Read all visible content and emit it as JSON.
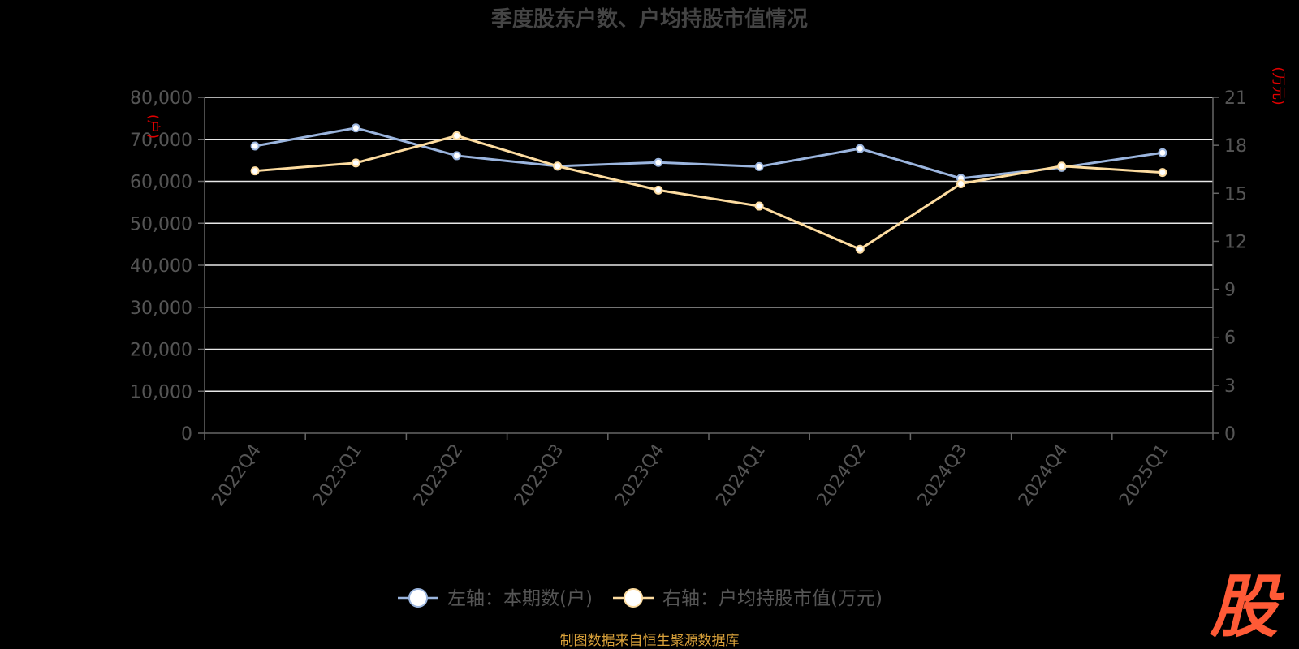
{
  "chart_data": {
    "type": "line",
    "title": "季度股东户数、户均持股市值情况",
    "categories": [
      "2022Q4",
      "2023Q1",
      "2023Q2",
      "2023Q3",
      "2023Q4",
      "2024Q1",
      "2024Q2",
      "2024Q3",
      "2024Q4",
      "2025Q1"
    ],
    "left_axis": {
      "unit": "(户)",
      "ylim": [
        0,
        80000
      ],
      "ticks": [
        "0",
        "10,000",
        "20,000",
        "30,000",
        "40,000",
        "50,000",
        "60,000",
        "70,000",
        "80,000"
      ]
    },
    "right_axis": {
      "unit": "(万元)",
      "ylim": [
        0,
        21
      ],
      "ticks": [
        "0",
        "3",
        "6",
        "9",
        "12",
        "15",
        "18",
        "21"
      ]
    },
    "series": [
      {
        "name": "左轴：本期数(户)",
        "axis": "left",
        "color": "#9bb5de",
        "values": [
          68400,
          72700,
          66100,
          63600,
          64500,
          63500,
          67800,
          60700,
          63300,
          66800
        ]
      },
      {
        "name": "右轴：户均持股市值(万元)",
        "axis": "right",
        "color": "#fddca0",
        "values": [
          16.4,
          16.9,
          18.6,
          16.7,
          15.2,
          14.2,
          11.5,
          15.6,
          16.7,
          16.3
        ]
      }
    ],
    "legend_position": "bottom",
    "grid": true
  },
  "source": "制图数据来自恒生聚源数据库",
  "logo": "股"
}
